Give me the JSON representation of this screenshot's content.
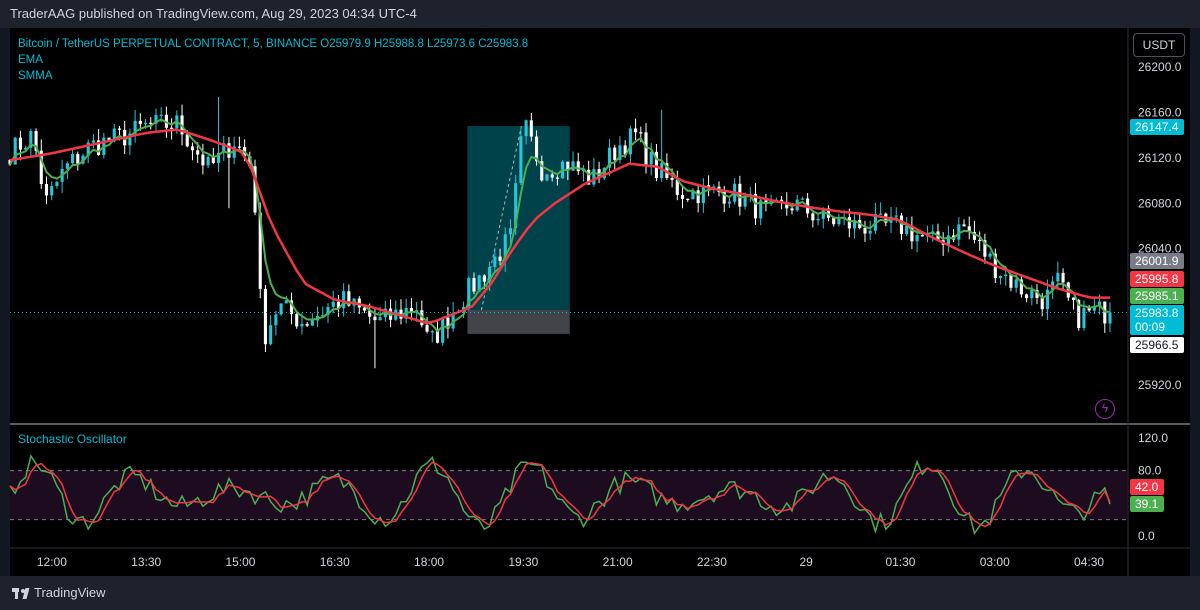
{
  "header": {
    "publisher_text": "TraderAAG published on TradingView.com, Aug 29, 2023 04:34 UTC-4"
  },
  "footer": {
    "brand": "TradingView"
  },
  "currency_button": "USDT",
  "legend": {
    "symbol_line": "Bitcoin / TetherUS PERPETUAL CONTRACT, 5, BINANCE  O25979.9  H25988.8  L25973.6  C25983.8",
    "ema": "EMA",
    "smma": "SMMA"
  },
  "colors": {
    "up": "#26c6da",
    "down": "#ffffff",
    "ema": "#4caf50",
    "smma": "#f23645",
    "stoch_k": "#4caf50",
    "stoch_d": "#f23645",
    "accent_bg": "#000000"
  },
  "chart_data": [
    {
      "type": "candlestick",
      "title": "Bitcoin / TetherUS PERPETUAL CONTRACT, 5, BINANCE",
      "ylim": [
        25890,
        26220
      ],
      "y_ticks": [
        "26200.0",
        "26160.0",
        "26120.0",
        "26080.0",
        "26040.0",
        "25920.0"
      ],
      "x_ticks": [
        "12:00",
        "13:30",
        "15:00",
        "16:30",
        "18:00",
        "19:30",
        "21:00",
        "22:30",
        "29",
        "01:30",
        "03:00",
        "04:30"
      ],
      "ohlc": {
        "open": 25979.9,
        "high": 25988.8,
        "low": 25973.6,
        "close": 25983.8
      },
      "price_tags": [
        {
          "label": "26147.4",
          "value": 26147.4,
          "color": "#00bcd4"
        },
        {
          "label": "26001.9",
          "value": 26001.9,
          "color": "#787b86"
        },
        {
          "label": "25995.8",
          "value": 25995.8,
          "color": "#f23645"
        },
        {
          "label": "25985.1",
          "value": 25985.1,
          "color": "#4caf50"
        },
        {
          "label": "25983.8",
          "value": 25983.8,
          "color": "#00bcd4",
          "countdown": "00:09"
        },
        {
          "label": "25966.5",
          "value": 25966.5,
          "color": "#ffffff"
        }
      ],
      "smma_path": [
        [
          "11:20",
          26118
        ],
        [
          "12:00",
          26124
        ],
        [
          "12:30",
          26130
        ],
        [
          "13:00",
          26136
        ],
        [
          "13:30",
          26142
        ],
        [
          "14:00",
          26145
        ],
        [
          "14:30",
          26136
        ],
        [
          "15:00",
          26126
        ],
        [
          "15:10",
          26112
        ],
        [
          "15:30",
          26060
        ],
        [
          "16:00",
          26010
        ],
        [
          "16:30",
          25995
        ],
        [
          "17:00",
          25990
        ],
        [
          "17:30",
          25982
        ],
        [
          "18:00",
          25974
        ],
        [
          "18:30",
          25985
        ],
        [
          "18:40",
          25988
        ],
        [
          "19:00",
          26010
        ],
        [
          "19:20",
          26040
        ],
        [
          "19:40",
          26065
        ],
        [
          "20:00",
          26080
        ],
        [
          "20:30",
          26098
        ],
        [
          "21:00",
          26110
        ],
        [
          "21:10",
          26115
        ],
        [
          "21:40",
          26112
        ],
        [
          "22:00",
          26100
        ],
        [
          "22:30",
          26093
        ],
        [
          "23:00",
          26088
        ],
        [
          "23:30",
          26082
        ],
        [
          "00:00",
          26077
        ],
        [
          "00:30",
          26073
        ],
        [
          "01:00",
          26070
        ],
        [
          "01:30",
          26065
        ],
        [
          "02:00",
          26050
        ],
        [
          "02:30",
          26037
        ],
        [
          "03:00",
          26025
        ],
        [
          "03:30",
          26015
        ],
        [
          "04:00",
          26005
        ],
        [
          "04:30",
          25997
        ]
      ],
      "position_box": {
        "entry": 25986,
        "target": 26148,
        "stop": 25965,
        "start": "18:50",
        "end": "20:20"
      }
    },
    {
      "type": "line",
      "title": "Stochastic Oscillator",
      "ylim": [
        -5,
        130
      ],
      "y_ticks": [
        "120.0",
        "80.0",
        "0.0"
      ],
      "bands": [
        80,
        20
      ],
      "last_values": [
        {
          "label": "42.0",
          "value": 42.0,
          "color": "#f23645"
        },
        {
          "label": "39.1",
          "value": 39.1,
          "color": "#4caf50"
        }
      ]
    }
  ]
}
